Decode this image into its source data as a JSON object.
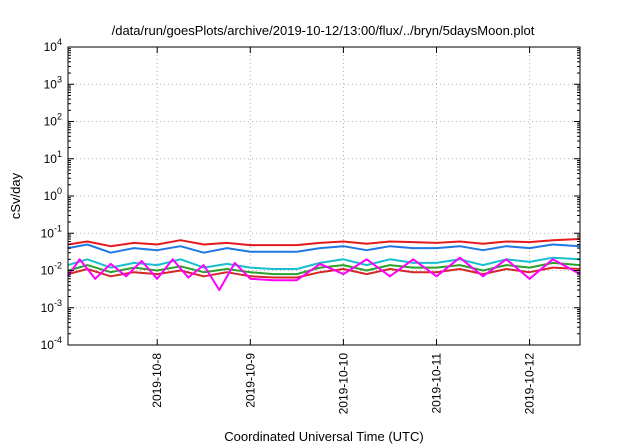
{
  "chart_data": {
    "type": "line",
    "title": "/data/run/goesPlots/archive/2019-10-12/13:00/flux/../bryn/5daysMoon.plot",
    "xlabel": "Coordinated Universal Time (UTC)",
    "ylabel": "cSv/day",
    "yscale": "log",
    "ylim": [
      0.0001,
      10000
    ],
    "xlim": [
      "2019-10-07 01:00",
      "2019-10-12 13:00"
    ],
    "grid": true,
    "legend": "none",
    "y_ticks": [
      {
        "base": "10",
        "exp": "-4"
      },
      {
        "base": "10",
        "exp": "-3"
      },
      {
        "base": "10",
        "exp": "-2"
      },
      {
        "base": "10",
        "exp": "-1"
      },
      {
        "base": "10",
        "exp": "0"
      },
      {
        "base": "10",
        "exp": "1"
      },
      {
        "base": "10",
        "exp": "2"
      },
      {
        "base": "10",
        "exp": "3"
      },
      {
        "base": "10",
        "exp": "4"
      }
    ],
    "x_ticks": [
      {
        "label": "2019-10-8",
        "t": "2019-10-08 00:00"
      },
      {
        "label": "2019-10-9",
        "t": "2019-10-09 00:00"
      },
      {
        "label": "2019-10-10",
        "t": "2019-10-10 00:00"
      },
      {
        "label": "2019-10-11",
        "t": "2019-10-11 00:00"
      },
      {
        "label": "2019-10-12",
        "t": "2019-10-12 00:00"
      }
    ],
    "series": [
      {
        "color": "#e41a1c",
        "x": [
          "2019-10-07 01:00",
          "2019-10-07 06:00",
          "2019-10-07 12:00",
          "2019-10-07 18:00",
          "2019-10-08 00:00",
          "2019-10-08 06:00",
          "2019-10-08 12:00",
          "2019-10-08 18:00",
          "2019-10-09 00:00",
          "2019-10-09 06:00",
          "2019-10-09 12:00",
          "2019-10-09 18:00",
          "2019-10-10 00:00",
          "2019-10-10 06:00",
          "2019-10-10 12:00",
          "2019-10-10 18:00",
          "2019-10-11 00:00",
          "2019-10-11 06:00",
          "2019-10-11 12:00",
          "2019-10-11 18:00",
          "2019-10-12 00:00",
          "2019-10-12 06:00",
          "2019-10-12 13:00"
        ],
        "y": [
          0.05,
          0.06,
          0.045,
          0.055,
          0.05,
          0.065,
          0.05,
          0.055,
          0.048,
          0.048,
          0.048,
          0.055,
          0.06,
          0.052,
          0.06,
          0.058,
          0.055,
          0.06,
          0.052,
          0.06,
          0.058,
          0.065,
          0.07
        ]
      },
      {
        "color": "#1f77e4",
        "x": [
          "2019-10-07 01:00",
          "2019-10-07 06:00",
          "2019-10-07 12:00",
          "2019-10-07 18:00",
          "2019-10-08 00:00",
          "2019-10-08 06:00",
          "2019-10-08 12:00",
          "2019-10-08 18:00",
          "2019-10-09 00:00",
          "2019-10-09 06:00",
          "2019-10-09 12:00",
          "2019-10-09 18:00",
          "2019-10-10 00:00",
          "2019-10-10 06:00",
          "2019-10-10 12:00",
          "2019-10-10 18:00",
          "2019-10-11 00:00",
          "2019-10-11 06:00",
          "2019-10-11 12:00",
          "2019-10-11 18:00",
          "2019-10-12 00:00",
          "2019-10-12 06:00",
          "2019-10-12 13:00"
        ],
        "y": [
          0.04,
          0.05,
          0.03,
          0.04,
          0.035,
          0.045,
          0.03,
          0.04,
          0.032,
          0.032,
          0.032,
          0.04,
          0.045,
          0.035,
          0.045,
          0.04,
          0.04,
          0.045,
          0.035,
          0.045,
          0.04,
          0.05,
          0.045
        ]
      },
      {
        "color": "#17becf",
        "x": [
          "2019-10-07 01:00",
          "2019-10-07 06:00",
          "2019-10-07 12:00",
          "2019-10-07 18:00",
          "2019-10-08 00:00",
          "2019-10-08 06:00",
          "2019-10-08 12:00",
          "2019-10-08 18:00",
          "2019-10-09 00:00",
          "2019-10-09 06:00",
          "2019-10-09 12:00",
          "2019-10-09 18:00",
          "2019-10-10 00:00",
          "2019-10-10 06:00",
          "2019-10-10 12:00",
          "2019-10-10 18:00",
          "2019-10-11 00:00",
          "2019-10-11 06:00",
          "2019-10-11 12:00",
          "2019-10-11 18:00",
          "2019-10-12 00:00",
          "2019-10-12 06:00",
          "2019-10-12 13:00"
        ],
        "y": [
          0.014,
          0.02,
          0.012,
          0.016,
          0.014,
          0.02,
          0.012,
          0.015,
          0.012,
          0.011,
          0.011,
          0.016,
          0.02,
          0.014,
          0.02,
          0.016,
          0.016,
          0.02,
          0.014,
          0.02,
          0.017,
          0.022,
          0.02
        ]
      },
      {
        "color": "#2ca02c",
        "x": [
          "2019-10-07 01:00",
          "2019-10-07 06:00",
          "2019-10-07 12:00",
          "2019-10-07 18:00",
          "2019-10-08 00:00",
          "2019-10-08 06:00",
          "2019-10-08 12:00",
          "2019-10-08 18:00",
          "2019-10-09 00:00",
          "2019-10-09 06:00",
          "2019-10-09 12:00",
          "2019-10-09 18:00",
          "2019-10-10 00:00",
          "2019-10-10 06:00",
          "2019-10-10 12:00",
          "2019-10-10 18:00",
          "2019-10-11 00:00",
          "2019-10-11 06:00",
          "2019-10-11 12:00",
          "2019-10-11 18:00",
          "2019-10-12 00:00",
          "2019-10-12 06:00",
          "2019-10-12 13:00"
        ],
        "y": [
          0.01,
          0.014,
          0.009,
          0.012,
          0.01,
          0.013,
          0.009,
          0.011,
          0.009,
          0.008,
          0.008,
          0.012,
          0.014,
          0.01,
          0.014,
          0.012,
          0.012,
          0.014,
          0.01,
          0.014,
          0.012,
          0.016,
          0.014
        ]
      },
      {
        "color": "#d62728",
        "x": [
          "2019-10-07 01:00",
          "2019-10-07 06:00",
          "2019-10-07 12:00",
          "2019-10-07 18:00",
          "2019-10-08 00:00",
          "2019-10-08 06:00",
          "2019-10-08 12:00",
          "2019-10-08 18:00",
          "2019-10-09 00:00",
          "2019-10-09 06:00",
          "2019-10-09 12:00",
          "2019-10-09 18:00",
          "2019-10-10 00:00",
          "2019-10-10 06:00",
          "2019-10-10 12:00",
          "2019-10-10 18:00",
          "2019-10-11 00:00",
          "2019-10-11 06:00",
          "2019-10-11 12:00",
          "2019-10-11 18:00",
          "2019-10-12 00:00",
          "2019-10-12 06:00",
          "2019-10-12 13:00"
        ],
        "y": [
          0.008,
          0.011,
          0.007,
          0.009,
          0.008,
          0.01,
          0.007,
          0.009,
          0.007,
          0.0065,
          0.0065,
          0.009,
          0.011,
          0.008,
          0.011,
          0.009,
          0.009,
          0.011,
          0.008,
          0.011,
          0.009,
          0.012,
          0.011
        ]
      },
      {
        "color": "#ff00ff",
        "x": [
          "2019-10-07 01:00",
          "2019-10-07 04:00",
          "2019-10-07 08:00",
          "2019-10-07 12:00",
          "2019-10-07 16:00",
          "2019-10-07 20:00",
          "2019-10-08 00:00",
          "2019-10-08 04:00",
          "2019-10-08 08:00",
          "2019-10-08 12:00",
          "2019-10-08 16:00",
          "2019-10-08 20:00",
          "2019-10-09 00:00",
          "2019-10-09 06:00",
          "2019-10-09 12:00",
          "2019-10-09 18:00",
          "2019-10-10 00:00",
          "2019-10-10 06:00",
          "2019-10-10 12:00",
          "2019-10-10 18:00",
          "2019-10-11 00:00",
          "2019-10-11 06:00",
          "2019-10-11 12:00",
          "2019-10-11 18:00",
          "2019-10-12 00:00",
          "2019-10-12 06:00",
          "2019-10-12 13:00"
        ],
        "y": [
          0.007,
          0.02,
          0.006,
          0.015,
          0.007,
          0.018,
          0.006,
          0.02,
          0.0065,
          0.014,
          0.003,
          0.016,
          0.006,
          0.0055,
          0.0055,
          0.015,
          0.008,
          0.02,
          0.007,
          0.02,
          0.007,
          0.022,
          0.007,
          0.02,
          0.006,
          0.02,
          0.008
        ]
      }
    ]
  }
}
